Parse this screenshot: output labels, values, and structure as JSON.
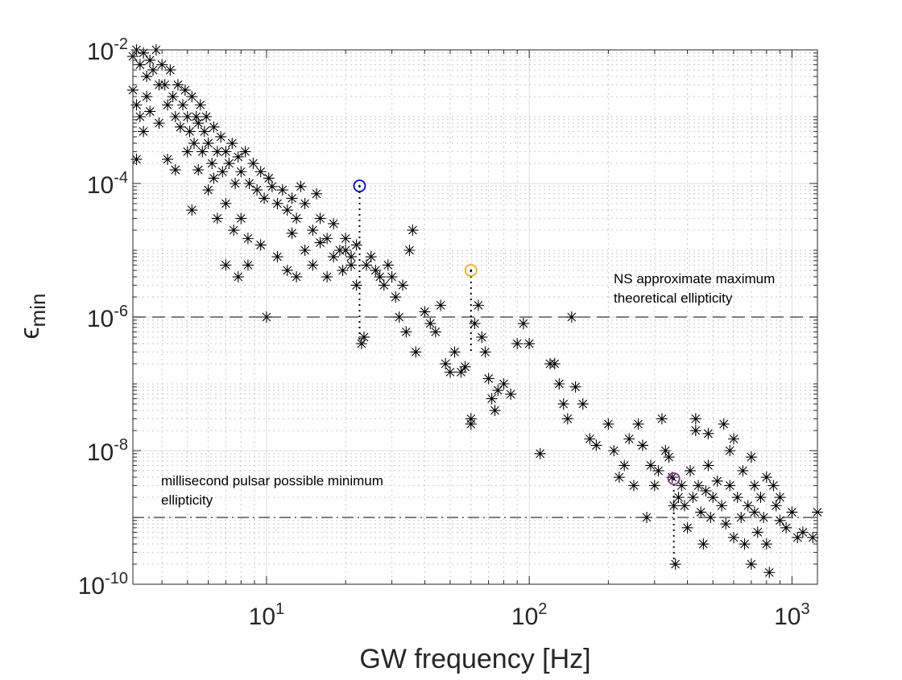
{
  "chart_data": {
    "type": "scatter",
    "title": "",
    "xlabel": "GW frequency [Hz]",
    "ylabel_base": "ϵ",
    "ylabel_sub": "min",
    "xscale": "log",
    "yscale": "log",
    "xlim": [
      3.1,
      1250
    ],
    "ylim": [
      1e-10,
      0.01
    ],
    "grid": "major and minor",
    "x_ticks": [
      {
        "base": "10",
        "exp": "1",
        "value": 10
      },
      {
        "base": "10",
        "exp": "2",
        "value": 100
      },
      {
        "base": "10",
        "exp": "3",
        "value": 1000
      }
    ],
    "y_ticks": [
      {
        "base": "10",
        "exp": "-2",
        "value": 0.01
      },
      {
        "base": "10",
        "exp": "-4",
        "value": 0.0001
      },
      {
        "base": "10",
        "exp": "-6",
        "value": 1e-06
      },
      {
        "base": "10",
        "exp": "-8",
        "value": 1e-08
      },
      {
        "base": "10",
        "exp": "-10",
        "value": 1e-10
      }
    ],
    "reference_lines": [
      {
        "value": 1e-06,
        "style": "dashed",
        "label_lines": [
          "NS approximate maximum",
          "theoretical ellipticity"
        ]
      },
      {
        "value": 1e-09,
        "style": "dash-dot",
        "label_lines": [
          "millisecond pulsar possible minimum",
          "ellipticity"
        ]
      }
    ],
    "highlighted": [
      {
        "x": 22.6,
        "y": 9.2e-05,
        "y_end": 4e-07,
        "color": "#0000ff"
      },
      {
        "x": 60,
        "y": 5e-06,
        "y_end": 3e-07,
        "color": "#edb120"
      },
      {
        "x": 355,
        "y": 3.8e-09,
        "y_end": 2e-10,
        "color": "#7e2f8e"
      }
    ],
    "marker": "asterisk",
    "marker_color": "#000000",
    "points": [
      [
        3.1,
        0.008
      ],
      [
        3.2,
        0.01
      ],
      [
        3.3,
        0.006
      ],
      [
        3.4,
        0.009
      ],
      [
        3.5,
        0.004
      ],
      [
        3.6,
        0.007
      ],
      [
        3.7,
        0.005
      ],
      [
        3.8,
        0.01
      ],
      [
        3.9,
        0.003
      ],
      [
        4.0,
        0.006
      ],
      [
        3.1,
        0.0025
      ],
      [
        3.2,
        0.0015
      ],
      [
        3.3,
        0.001
      ],
      [
        3.5,
        0.002
      ],
      [
        3.6,
        0.0012
      ],
      [
        3.4,
        0.0006
      ],
      [
        3.2,
        0.00023
      ],
      [
        3.9,
        0.0008
      ],
      [
        4.1,
        0.003
      ],
      [
        4.2,
        0.0015
      ],
      [
        4.3,
        0.005
      ],
      [
        4.4,
        0.002
      ],
      [
        4.5,
        0.001
      ],
      [
        4.6,
        0.003
      ],
      [
        4.7,
        0.0007
      ],
      [
        4.8,
        0.0015
      ],
      [
        4.9,
        0.0025
      ],
      [
        5.0,
        0.001
      ],
      [
        5.1,
        0.0006
      ],
      [
        5.2,
        0.002
      ],
      [
        5.3,
        0.0004
      ],
      [
        5.4,
        0.001
      ],
      [
        5.5,
        0.0008
      ],
      [
        5.6,
        0.0015
      ],
      [
        5.7,
        0.0003
      ],
      [
        5.8,
        0.0006
      ],
      [
        5.9,
        0.001
      ],
      [
        6.0,
        0.0004
      ],
      [
        6.2,
        0.0002
      ],
      [
        6.3,
        0.0007
      ],
      [
        6.5,
        0.0003
      ],
      [
        6.7,
        0.0005
      ],
      [
        6.8,
        0.00015
      ],
      [
        7.0,
        0.0003
      ],
      [
        7.2,
        0.0002
      ],
      [
        7.4,
        0.0004
      ],
      [
        7.6,
        0.0001
      ],
      [
        7.8,
        0.00025
      ],
      [
        8.0,
        0.00015
      ],
      [
        8.3,
        0.0003
      ],
      [
        8.6,
        0.0001
      ],
      [
        8.9,
        0.0002
      ],
      [
        9.2,
        8e-05
      ],
      [
        9.5,
        0.00015
      ],
      [
        9.8,
        6e-05
      ],
      [
        10.2,
        0.00012
      ],
      [
        10.5,
        9e-05
      ],
      [
        11,
        5e-05
      ],
      [
        11.5,
        8e-05
      ],
      [
        12,
        4e-05
      ],
      [
        12.5,
        6e-05
      ],
      [
        13,
        3e-05
      ],
      [
        13.5,
        9e-05
      ],
      [
        14,
        5e-05
      ],
      [
        15,
        2e-05
      ],
      [
        15.5,
        7e-05
      ],
      [
        16,
        3e-05
      ],
      [
        17,
        1.5e-05
      ],
      [
        18,
        2.5e-05
      ],
      [
        19,
        1e-05
      ],
      [
        20,
        1.5e-05
      ],
      [
        21,
        8e-06
      ],
      [
        22,
        1.2e-05
      ],
      [
        4.5,
        0.00016
      ],
      [
        4.2,
        0.00023
      ],
      [
        5,
        0.0003
      ],
      [
        5.5,
        0.00016
      ],
      [
        6,
        8e-05
      ],
      [
        6.3,
        0.00012
      ],
      [
        5.2,
        4e-05
      ],
      [
        7,
        5e-05
      ],
      [
        6.5,
        3e-05
      ],
      [
        7.5,
        2e-05
      ],
      [
        8,
        3e-05
      ],
      [
        8.5,
        1.5e-05
      ],
      [
        7,
        6e-06
      ],
      [
        7.8,
        4e-06
      ],
      [
        8.5,
        6e-06
      ],
      [
        9.5,
        1.2e-05
      ],
      [
        10,
        1e-06
      ],
      [
        11,
        8e-06
      ],
      [
        12,
        5e-06
      ],
      [
        12.5,
        1.8e-05
      ],
      [
        13,
        4e-06
      ],
      [
        14,
        1e-05
      ],
      [
        15,
        6e-06
      ],
      [
        16,
        1.3e-05
      ],
      [
        17,
        4e-06
      ],
      [
        18,
        8e-06
      ],
      [
        19.5,
        5e-06
      ],
      [
        20,
        1e-05
      ],
      [
        21,
        6e-06
      ],
      [
        22,
        3e-06
      ],
      [
        23,
        4e-07
      ],
      [
        23.5,
        5e-07
      ],
      [
        24,
        6e-06
      ],
      [
        25,
        8e-06
      ],
      [
        26,
        5e-06
      ],
      [
        27,
        4e-06
      ],
      [
        28,
        3e-06
      ],
      [
        29,
        6e-06
      ],
      [
        30,
        4e-06
      ],
      [
        31,
        2e-06
      ],
      [
        32,
        1e-06
      ],
      [
        33,
        3e-06
      ],
      [
        34,
        6e-07
      ],
      [
        35,
        1e-05
      ],
      [
        36,
        2e-05
      ],
      [
        37,
        3e-07
      ],
      [
        40,
        1.2e-06
      ],
      [
        42,
        8e-07
      ],
      [
        44,
        6e-07
      ],
      [
        46,
        1.5e-06
      ],
      [
        48,
        2e-07
      ],
      [
        50,
        1.5e-07
      ],
      [
        52,
        3e-07
      ],
      [
        55,
        1.5e-07
      ],
      [
        57,
        1.8e-07
      ],
      [
        60,
        3e-08
      ],
      [
        60,
        2.5e-08
      ],
      [
        62,
        8e-07
      ],
      [
        64,
        1.5e-06
      ],
      [
        66,
        5e-07
      ],
      [
        68,
        3e-07
      ],
      [
        70,
        1.2e-07
      ],
      [
        72,
        6e-08
      ],
      [
        74,
        4e-08
      ],
      [
        76,
        8e-08
      ],
      [
        80,
        1e-07
      ],
      [
        85,
        7e-08
      ],
      [
        90,
        4e-07
      ],
      [
        95,
        8e-07
      ],
      [
        100,
        4e-07
      ],
      [
        110,
        9e-09
      ],
      [
        120,
        2e-07
      ],
      [
        125,
        2e-07
      ],
      [
        130,
        1e-07
      ],
      [
        135,
        5e-08
      ],
      [
        140,
        3e-08
      ],
      [
        145,
        1e-06
      ],
      [
        150,
        9e-08
      ],
      [
        160,
        5e-08
      ],
      [
        170,
        1.5e-08
      ],
      [
        180,
        1.2e-08
      ],
      [
        200,
        2.5e-08
      ],
      [
        210,
        1e-08
      ],
      [
        220,
        4e-09
      ],
      [
        230,
        6e-09
      ],
      [
        240,
        1.5e-08
      ],
      [
        250,
        3e-09
      ],
      [
        260,
        2.5e-08
      ],
      [
        270,
        1.2e-08
      ],
      [
        280,
        1e-09
      ],
      [
        290,
        6e-09
      ],
      [
        300,
        3e-09
      ],
      [
        310,
        5e-09
      ],
      [
        320,
        3e-08
      ],
      [
        330,
        1e-08
      ],
      [
        340,
        8e-09
      ],
      [
        350,
        4e-09
      ],
      [
        355,
        1.5e-09
      ],
      [
        360,
        2e-10
      ],
      [
        370,
        2e-09
      ],
      [
        380,
        3e-09
      ],
      [
        390,
        1.5e-09
      ],
      [
        400,
        7e-10
      ],
      [
        410,
        5e-09
      ],
      [
        420,
        2e-09
      ],
      [
        430,
        3e-08
      ],
      [
        440,
        3e-09
      ],
      [
        450,
        1.2e-09
      ],
      [
        460,
        4e-10
      ],
      [
        470,
        2.5e-09
      ],
      [
        480,
        6e-09
      ],
      [
        490,
        1e-09
      ],
      [
        500,
        2e-09
      ],
      [
        520,
        3.5e-09
      ],
      [
        540,
        1.5e-09
      ],
      [
        560,
        8e-10
      ],
      [
        580,
        3e-09
      ],
      [
        600,
        5e-10
      ],
      [
        620,
        2e-09
      ],
      [
        640,
        1e-09
      ],
      [
        660,
        4e-10
      ],
      [
        680,
        1.5e-09
      ],
      [
        700,
        2e-10
      ],
      [
        720,
        1.2e-09
      ],
      [
        740,
        6e-10
      ],
      [
        760,
        2e-09
      ],
      [
        780,
        1e-09
      ],
      [
        800,
        4e-10
      ],
      [
        820,
        1.5e-10
      ],
      [
        850,
        3e-09
      ],
      [
        870,
        1.5e-09
      ],
      [
        900,
        9e-10
      ],
      [
        950,
        7e-10
      ],
      [
        1000,
        1.2e-09
      ],
      [
        1050,
        5e-10
      ],
      [
        1100,
        6e-10
      ],
      [
        1200,
        5e-10
      ],
      [
        1250,
        1.2e-09
      ],
      [
        430,
        2e-08
      ],
      [
        480,
        1.8e-08
      ],
      [
        550,
        2.5e-08
      ],
      [
        600,
        1.5e-08
      ],
      [
        700,
        8e-09
      ],
      [
        800,
        4e-09
      ],
      [
        900,
        2e-09
      ],
      [
        580,
        1e-08
      ],
      [
        650,
        5e-09
      ],
      [
        720,
        3e-09
      ]
    ]
  }
}
